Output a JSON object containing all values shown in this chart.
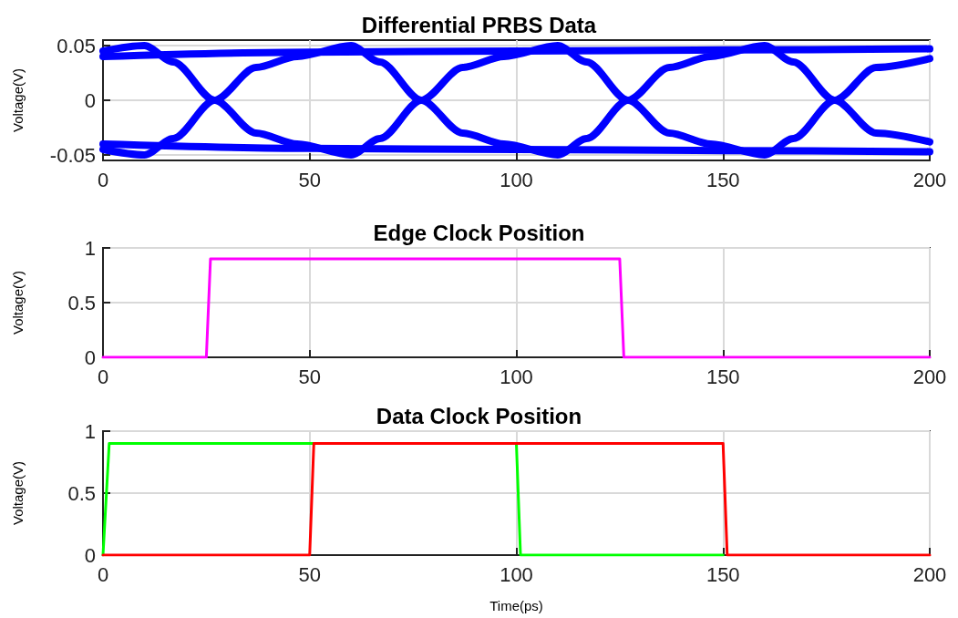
{
  "chart_data": [
    {
      "type": "line",
      "title": "Differential PRBS Data",
      "ylabel": "Voltage(V)",
      "xlim": [
        0,
        200
      ],
      "xticks": [
        0,
        50,
        100,
        150,
        200
      ],
      "ylim": [
        -0.055,
        0.055
      ],
      "yticks": [
        -0.05,
        0,
        0.05
      ],
      "grid": true,
      "marker": "none",
      "line_style": "solid",
      "series": [
        {
          "color": "#0000ff",
          "x": [
            0,
            10,
            17,
            27,
            37,
            47,
            60,
            67,
            77,
            87,
            97,
            110,
            117,
            127,
            137,
            147,
            160,
            167,
            177,
            187,
            200
          ],
          "values": [
            0.045,
            0.05,
            0.035,
            0,
            -0.03,
            -0.04,
            -0.05,
            -0.035,
            0,
            0.03,
            0.04,
            0.05,
            0.035,
            0,
            -0.03,
            -0.04,
            -0.05,
            -0.035,
            0,
            0.03,
            0.038
          ]
        },
        {
          "color": "#0000ff",
          "x": [
            0,
            10,
            17,
            27,
            37,
            47,
            60,
            67,
            77,
            87,
            97,
            110,
            117,
            127,
            137,
            147,
            160,
            167,
            177,
            187,
            200
          ],
          "values": [
            -0.045,
            -0.05,
            -0.035,
            0,
            0.03,
            0.04,
            0.05,
            0.035,
            0,
            -0.03,
            -0.04,
            -0.05,
            -0.035,
            0,
            0.03,
            0.04,
            0.05,
            0.035,
            0,
            -0.03,
            -0.038
          ]
        },
        {
          "color": "#0000ff",
          "x": [
            0,
            50,
            100,
            150,
            200
          ],
          "values": [
            0.04,
            0.044,
            0.045,
            0.046,
            0.047
          ]
        },
        {
          "color": "#0000ff",
          "x": [
            0,
            50,
            100,
            150,
            200
          ],
          "values": [
            -0.04,
            -0.044,
            -0.045,
            -0.046,
            -0.047
          ]
        }
      ]
    },
    {
      "type": "line",
      "title": "Edge Clock Position",
      "ylabel": "Voltage(V)",
      "xlim": [
        0,
        200
      ],
      "xticks": [
        0,
        50,
        100,
        150,
        200
      ],
      "ylim": [
        0,
        1
      ],
      "yticks": [
        0,
        0.5,
        1
      ],
      "grid": true,
      "marker": "none",
      "line_style": "solid",
      "series": [
        {
          "color": "#ff00ff",
          "x": [
            0,
            25,
            26,
            125,
            126,
            200
          ],
          "values": [
            0,
            0,
            0.9,
            0.9,
            0,
            0
          ]
        }
      ]
    },
    {
      "type": "line",
      "title": "Data Clock Position",
      "ylabel": "Voltage(V)",
      "xlabel": "Time(ps)",
      "xlim": [
        0,
        200
      ],
      "xticks": [
        0,
        50,
        100,
        150,
        200
      ],
      "ylim": [
        0,
        1
      ],
      "yticks": [
        0,
        0.5,
        1
      ],
      "grid": true,
      "marker": "none",
      "line_style": "solid",
      "series": [
        {
          "color": "#00ff00",
          "x": [
            0,
            1.5,
            100,
            101,
            150
          ],
          "values": [
            0,
            0.9,
            0.9,
            0,
            0
          ]
        },
        {
          "color": "#ff0000",
          "x": [
            0,
            50,
            51,
            150,
            151,
            200
          ],
          "values": [
            0,
            0,
            0.9,
            0.9,
            0,
            0
          ]
        }
      ]
    }
  ]
}
